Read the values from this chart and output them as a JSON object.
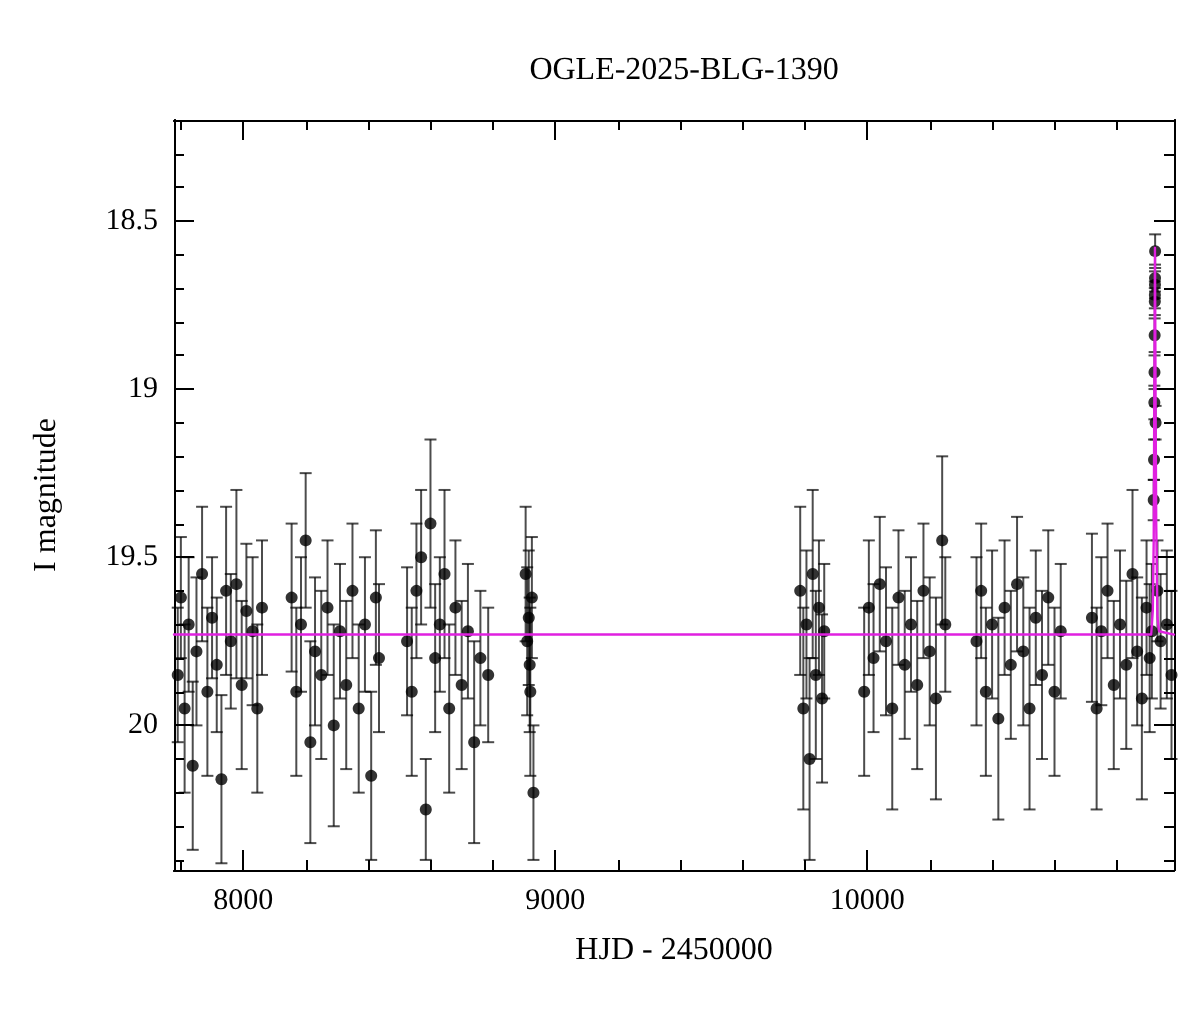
{
  "chart_data": {
    "type": "scatter",
    "title": "OGLE-2025-BLG-1390",
    "xlabel": "HJD - 2450000",
    "ylabel": "I magnitude",
    "xlim": [
      7778,
      10983
    ],
    "ylim": [
      20.43,
      18.2
    ],
    "xticks": [
      {
        "value": 7800,
        "label": null
      },
      8000,
      {
        "value": 8200,
        "label": null
      },
      {
        "value": 8400,
        "label": null
      },
      {
        "value": 8600,
        "label": null
      },
      {
        "value": 8800,
        "label": null
      },
      9000,
      {
        "value": 9200,
        "label": null
      },
      {
        "value": 9400,
        "label": null
      },
      {
        "value": 9600,
        "label": null
      },
      {
        "value": 9800,
        "label": null
      },
      10000,
      {
        "value": 10200,
        "label": null
      },
      {
        "value": 10400,
        "label": null
      },
      {
        "value": 10600,
        "label": null
      },
      {
        "value": 10800,
        "label": null
      }
    ],
    "yticks": [
      {
        "value": 18.3,
        "label": null
      },
      {
        "value": 18.4,
        "label": null
      },
      18.5,
      {
        "value": 18.6,
        "label": null
      },
      {
        "value": 18.7,
        "label": null
      },
      {
        "value": 18.8,
        "label": null
      },
      {
        "value": 18.9,
        "label": null
      },
      19,
      {
        "value": 19.1,
        "label": null
      },
      {
        "value": 19.2,
        "label": null
      },
      {
        "value": 19.3,
        "label": null
      },
      {
        "value": 19.4,
        "label": null
      },
      19.5,
      {
        "value": 19.6,
        "label": null
      },
      {
        "value": 19.7,
        "label": null
      },
      {
        "value": 19.8,
        "label": null
      },
      {
        "value": 19.9,
        "label": null
      },
      20,
      {
        "value": 20.1,
        "label": null
      },
      {
        "value": 20.2,
        "label": null
      },
      {
        "value": 20.3,
        "label": null
      },
      {
        "value": 20.4,
        "label": null
      }
    ],
    "grid": false,
    "line_style": "solid",
    "series": [
      {
        "marker": "circle",
        "color": "#000000",
        "x": [
          7790,
          7800,
          7812,
          7825,
          7838,
          7850,
          7868,
          7885,
          7900,
          7915,
          7930,
          7945,
          7960,
          7978,
          7995,
          8010,
          8030,
          8045,
          8060,
          8155,
          8170,
          8185,
          8200,
          8215,
          8230,
          8250,
          8270,
          8290,
          8310,
          8330,
          8350,
          8370,
          8390,
          8410,
          8425,
          8435,
          8525,
          8540,
          8555,
          8570,
          8585,
          8600,
          8615,
          8630,
          8645,
          8660,
          8680,
          8700,
          8720,
          8740,
          8760,
          8785,
          8905,
          8910,
          8915,
          8920,
          8925,
          8930,
          8918,
          9785,
          9795,
          9805,
          9815,
          9825,
          9835,
          9845,
          9855,
          9862,
          9990,
          10005,
          10020,
          10040,
          10060,
          10080,
          10100,
          10120,
          10140,
          10160,
          10180,
          10200,
          10220,
          10240,
          10250,
          10350,
          10365,
          10380,
          10400,
          10420,
          10440,
          10460,
          10480,
          10500,
          10520,
          10540,
          10560,
          10580,
          10600,
          10620,
          10720,
          10735,
          10750,
          10770,
          10790,
          10810,
          10830,
          10850,
          10865,
          10880,
          10895,
          10905,
          10912,
          10918,
          10919,
          10920,
          10920.5,
          10921,
          10921.5,
          10921.7,
          10922,
          10922.2,
          10922.5,
          10924,
          10930,
          10940,
          10960,
          10975
        ],
        "values": [
          19.85,
          19.62,
          19.95,
          19.7,
          20.12,
          19.78,
          19.55,
          19.9,
          19.68,
          19.82,
          20.16,
          19.6,
          19.75,
          19.58,
          19.88,
          19.66,
          19.72,
          19.95,
          19.65,
          19.62,
          19.9,
          19.7,
          19.45,
          20.05,
          19.78,
          19.85,
          19.65,
          20.0,
          19.72,
          19.88,
          19.6,
          19.95,
          19.7,
          20.15,
          19.62,
          19.8,
          19.75,
          19.9,
          19.6,
          19.5,
          20.25,
          19.4,
          19.8,
          19.7,
          19.55,
          19.95,
          19.65,
          19.88,
          19.72,
          20.05,
          19.8,
          19.85,
          19.55,
          19.75,
          19.68,
          19.9,
          19.62,
          20.2,
          19.82,
          19.6,
          19.95,
          19.7,
          20.1,
          19.55,
          19.85,
          19.65,
          19.92,
          19.72,
          19.9,
          19.65,
          19.8,
          19.58,
          19.75,
          19.95,
          19.62,
          19.82,
          19.7,
          19.88,
          19.6,
          19.78,
          19.92,
          19.45,
          19.7,
          19.75,
          19.6,
          19.9,
          19.7,
          19.98,
          19.65,
          19.82,
          19.58,
          19.78,
          19.95,
          19.68,
          19.85,
          19.62,
          19.9,
          19.72,
          19.68,
          19.95,
          19.72,
          19.6,
          19.88,
          19.7,
          19.82,
          19.55,
          19.78,
          19.92,
          19.65,
          19.8,
          19.72,
          19.33,
          19.21,
          19.04,
          18.95,
          18.84,
          18.74,
          18.72,
          18.69,
          18.67,
          18.59,
          19.1,
          19.6,
          19.75,
          19.7,
          19.85
        ],
        "errors": [
          0.2,
          0.18,
          0.25,
          0.2,
          0.25,
          0.22,
          0.2,
          0.25,
          0.18,
          0.2,
          0.25,
          0.25,
          0.2,
          0.28,
          0.25,
          0.2,
          0.22,
          0.25,
          0.2,
          0.22,
          0.25,
          0.2,
          0.2,
          0.3,
          0.22,
          0.25,
          0.2,
          0.3,
          0.2,
          0.25,
          0.2,
          0.25,
          0.2,
          0.25,
          0.2,
          0.22,
          0.22,
          0.25,
          0.2,
          0.2,
          0.15,
          0.25,
          0.22,
          0.2,
          0.25,
          0.25,
          0.2,
          0.25,
          0.2,
          0.3,
          0.2,
          0.2,
          0.2,
          0.22,
          0.2,
          0.25,
          0.18,
          0.2,
          0.2,
          0.25,
          0.3,
          0.22,
          0.3,
          0.25,
          0.25,
          0.2,
          0.25,
          0.2,
          0.25,
          0.2,
          0.22,
          0.2,
          0.22,
          0.3,
          0.2,
          0.22,
          0.2,
          0.25,
          0.2,
          0.22,
          0.3,
          0.25,
          0.2,
          0.25,
          0.2,
          0.25,
          0.22,
          0.3,
          0.2,
          0.22,
          0.2,
          0.22,
          0.3,
          0.2,
          0.25,
          0.2,
          0.25,
          0.2,
          0.25,
          0.3,
          0.22,
          0.2,
          0.25,
          0.22,
          0.25,
          0.25,
          0.22,
          0.3,
          0.2,
          0.22,
          0.2,
          0.06,
          0.06,
          0.05,
          0.05,
          0.05,
          0.04,
          0.04,
          0.04,
          0.04,
          0.05,
          0.05,
          0.15,
          0.2,
          0.22,
          0.25
        ]
      },
      {
        "type": "line",
        "marker": "none",
        "color": "#e020e0",
        "x": [
          7778,
          10910,
          10915,
          10918,
          10920,
          10922,
          10924,
          10926,
          10930,
          10935,
          10983
        ],
        "values": [
          19.73,
          19.73,
          19.66,
          19.45,
          19.0,
          18.58,
          19.05,
          19.4,
          19.68,
          19.72,
          19.73
        ]
      }
    ]
  }
}
